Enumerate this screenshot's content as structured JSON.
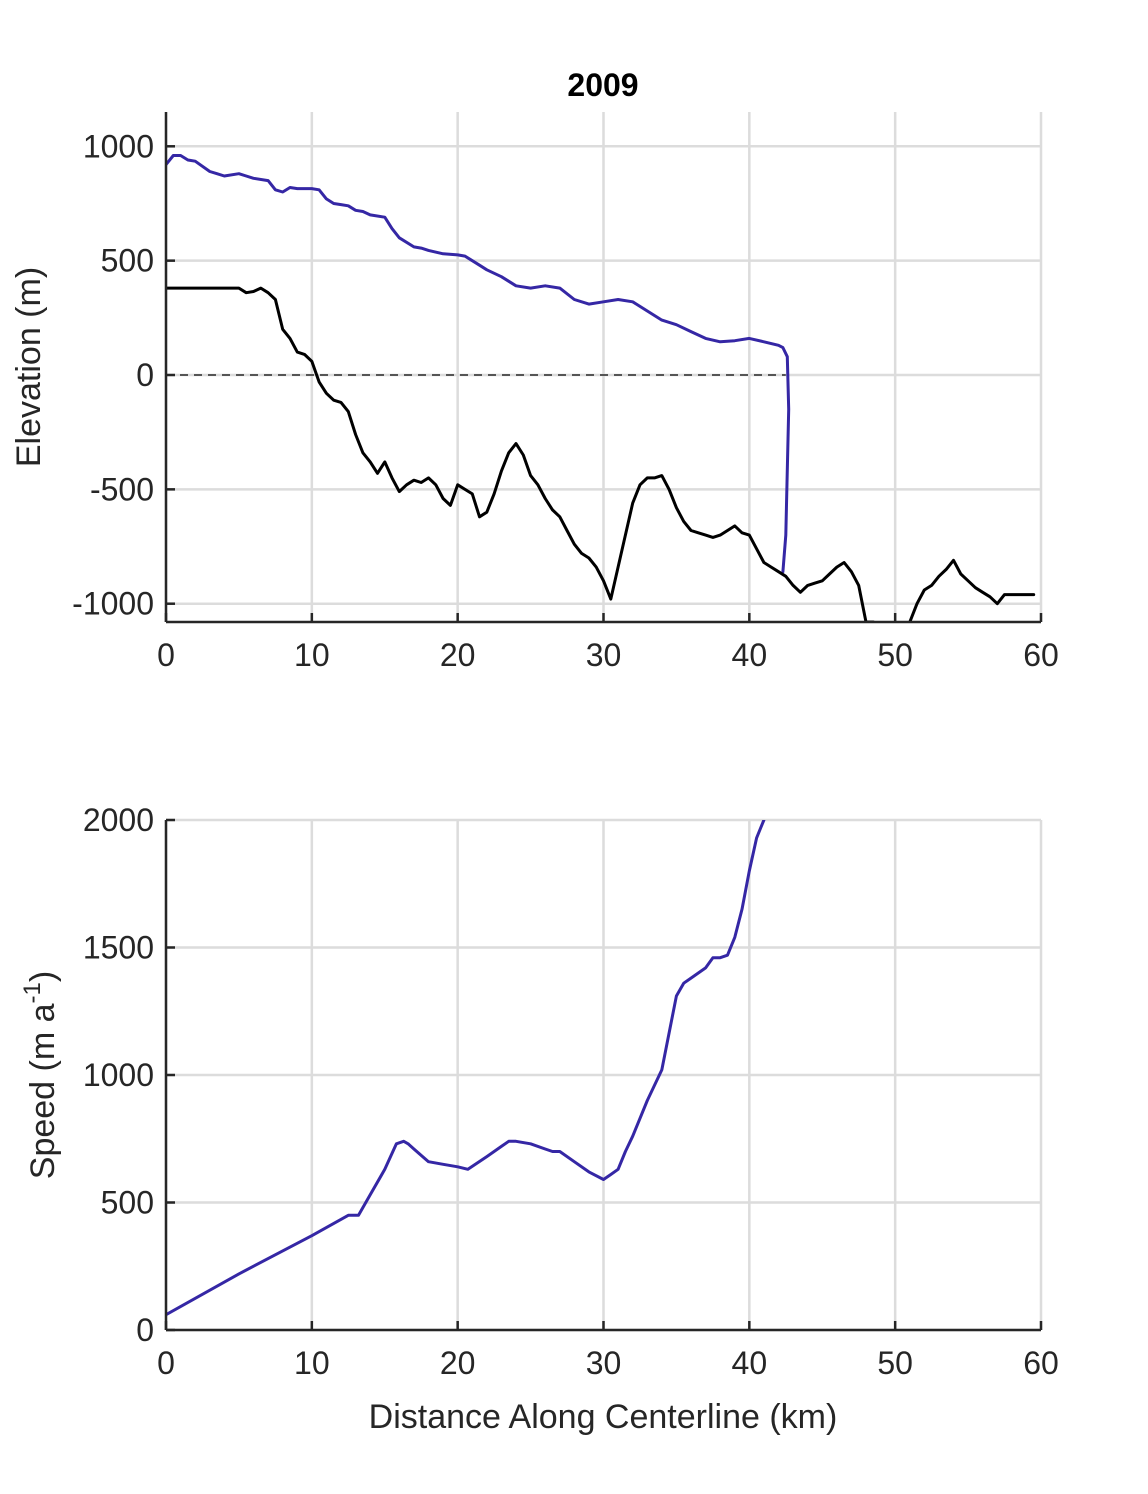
{
  "chart_data": [
    {
      "type": "line",
      "title": "2009",
      "xlabel": "",
      "ylabel": "Elevation (m)",
      "xlim": [
        0,
        60
      ],
      "ylim": [
        -1080,
        1150
      ],
      "xticks": [
        0,
        10,
        20,
        30,
        40,
        50,
        60
      ],
      "yticks": [
        -1000,
        -500,
        0,
        500,
        1000
      ],
      "xtick_labels": [
        "0",
        "10",
        "20",
        "30",
        "40",
        "50",
        "60"
      ],
      "ytick_labels": [
        "-1000",
        "-500",
        "0",
        "500",
        "1000"
      ],
      "grid": true,
      "reference_line": {
        "y": 0,
        "x_range": [
          0,
          42.5
        ],
        "style": "dashed"
      },
      "series": [
        {
          "color": "#3527a5",
          "x": [
            0,
            0.5,
            1,
            1.5,
            2,
            3,
            3.5,
            4,
            5,
            5.5,
            6,
            7,
            7.5,
            8,
            8.5,
            9,
            10,
            10.5,
            11,
            11.5,
            12,
            12.5,
            13,
            13.5,
            14,
            15,
            15.5,
            16,
            17,
            17.5,
            18,
            19,
            20,
            20.5,
            21,
            21.5,
            22,
            23,
            24,
            25,
            26,
            27,
            28,
            29,
            30,
            31,
            32,
            33,
            34,
            35,
            36,
            37,
            38,
            39,
            40,
            41,
            42,
            42.3,
            42.6,
            42.7,
            42.5,
            42.3
          ],
          "y": [
            920,
            960,
            960,
            940,
            935,
            890,
            880,
            870,
            880,
            870,
            860,
            850,
            810,
            800,
            820,
            815,
            815,
            810,
            770,
            750,
            745,
            740,
            720,
            715,
            700,
            690,
            640,
            600,
            560,
            555,
            545,
            530,
            525,
            520,
            500,
            480,
            460,
            430,
            390,
            380,
            390,
            380,
            330,
            310,
            320,
            330,
            320,
            280,
            240,
            220,
            190,
            160,
            145,
            150,
            160,
            145,
            130,
            120,
            80,
            -150,
            -700,
            -860
          ]
        },
        {
          "color": "#000000",
          "x": [
            0,
            1,
            2,
            3,
            4,
            5,
            5.5,
            6,
            6.5,
            7,
            7.5,
            8,
            8.5,
            9,
            9.5,
            10,
            10.5,
            11,
            11.5,
            12,
            12.5,
            13,
            13.5,
            14,
            14.5,
            15,
            15.5,
            16,
            16.5,
            17,
            17.5,
            18,
            18.5,
            19,
            19.5,
            20,
            20.5,
            21,
            21.5,
            22,
            22.5,
            23,
            23.5,
            24,
            24.5,
            25,
            25.5,
            26,
            26.5,
            27,
            27.5,
            28,
            28.5,
            29,
            29.5,
            30,
            30.5,
            31,
            31.5,
            32,
            32.5,
            33,
            33.5,
            34,
            34.5,
            35,
            35.5,
            36,
            36.5,
            37,
            37.5,
            38,
            38.5,
            39,
            39.5,
            40,
            40.5,
            41,
            41.5,
            42,
            42.5,
            43,
            43.5,
            44,
            44.5,
            45,
            45.5,
            46,
            46.5,
            47,
            47.5,
            48,
            48.5
          ],
          "y": [
            380,
            380,
            380,
            380,
            380,
            380,
            360,
            365,
            380,
            360,
            330,
            200,
            160,
            100,
            90,
            60,
            -30,
            -80,
            -110,
            -120,
            -160,
            -260,
            -340,
            -380,
            -430,
            -380,
            -450,
            -510,
            -480,
            -460,
            -470,
            -450,
            -480,
            -540,
            -570,
            -480,
            -500,
            -520,
            -620,
            -600,
            -520,
            -420,
            -340,
            -300,
            -350,
            -440,
            -480,
            -540,
            -590,
            -620,
            -680,
            -740,
            -780,
            -800,
            -840,
            -900,
            -980,
            -840,
            -700,
            -560,
            -480,
            -450,
            -450,
            -440,
            -500,
            -580,
            -640,
            -680,
            -690,
            -700,
            -710,
            -700,
            -680,
            -660,
            -690,
            -700,
            -760,
            -820,
            -840,
            -860,
            -880,
            -920,
            -950,
            -920,
            -910,
            -900,
            -870,
            -840,
            -820,
            -860,
            -920,
            -1080,
            -1080
          ]
        },
        {
          "color": "#000000",
          "x": [
            51,
            51.5,
            52,
            52.5,
            53,
            53.5,
            54,
            54.5,
            55,
            55.5,
            56,
            56.5,
            57,
            57.5,
            58,
            58.5,
            59,
            59.5
          ],
          "y": [
            -1080,
            -1000,
            -940,
            -920,
            -880,
            -850,
            -810,
            -870,
            -900,
            -930,
            -950,
            -970,
            -1000,
            -960,
            -960,
            -960,
            -960,
            -960
          ]
        }
      ]
    },
    {
      "type": "line",
      "title": "",
      "xlabel": "Distance Along Centerline (km)",
      "ylabel": "Speed (m a",
      "ylabel_sup": "-1",
      "ylabel_close": ")",
      "xlim": [
        0,
        60
      ],
      "ylim": [
        0,
        2000
      ],
      "xticks": [
        0,
        10,
        20,
        30,
        40,
        50,
        60
      ],
      "yticks": [
        0,
        500,
        1000,
        1500,
        2000
      ],
      "xtick_labels": [
        "0",
        "10",
        "20",
        "30",
        "40",
        "50",
        "60"
      ],
      "ytick_labels": [
        "0",
        "500",
        "1000",
        "1500",
        "2000"
      ],
      "grid": true,
      "series": [
        {
          "color": "#3527a5",
          "x": [
            0,
            5,
            10,
            12.5,
            13.2,
            14,
            15,
            15.8,
            16.3,
            16.6,
            17,
            18,
            19,
            20,
            20.7,
            22,
            23,
            23.5,
            24,
            25,
            26,
            26.5,
            27,
            28,
            29,
            30,
            30.5,
            31,
            31.5,
            32,
            33,
            34,
            35,
            35.5,
            36,
            37,
            37.5,
            38,
            38.5,
            39,
            39.5,
            40,
            40.5,
            41
          ],
          "y": [
            60,
            220,
            370,
            450,
            450,
            530,
            630,
            730,
            740,
            730,
            710,
            660,
            650,
            640,
            630,
            680,
            720,
            740,
            740,
            730,
            710,
            700,
            700,
            660,
            620,
            590,
            610,
            630,
            700,
            760,
            900,
            1020,
            1310,
            1360,
            1380,
            1420,
            1460,
            1460,
            1470,
            1540,
            1650,
            1800,
            1930,
            2000
          ]
        }
      ]
    }
  ]
}
